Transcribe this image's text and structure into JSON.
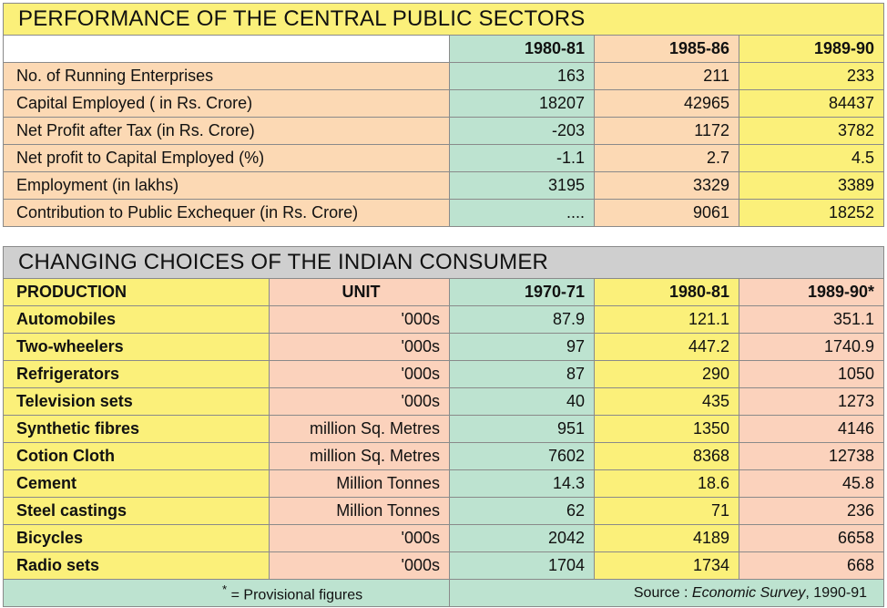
{
  "table1": {
    "title": "PERFORMANCE OF THE CENTRAL PUBLIC SECTORS",
    "columns": [
      "1980-81",
      "1985-86",
      "1989-90"
    ],
    "rows": [
      {
        "label": "No. of Running Enterprises",
        "values": [
          "163",
          "211",
          "233"
        ]
      },
      {
        "label": "Capital Employed ( in Rs. Crore)",
        "values": [
          "18207",
          "42965",
          "84437"
        ]
      },
      {
        "label": "Net Profit after Tax (in Rs. Crore)",
        "values": [
          "-203",
          "1172",
          "3782"
        ]
      },
      {
        "label": "Net profit to Capital Employed (%)",
        "values": [
          "-1.1",
          "2.7",
          "4.5"
        ]
      },
      {
        "label": "Employment (in lakhs)",
        "values": [
          "3195",
          "3329",
          "3389"
        ]
      },
      {
        "label": "Contribution to Public Exchequer (in Rs. Crore)",
        "values": [
          "....",
          "9061",
          "18252"
        ]
      }
    ]
  },
  "table2": {
    "title": "CHANGING CHOICES OF THE INDIAN CONSUMER",
    "headers": [
      "PRODUCTION",
      "UNIT",
      "1970-71",
      "1980-81",
      "1989-90*"
    ],
    "rows": [
      {
        "label": "Automobiles",
        "unit": "'000s",
        "values": [
          "87.9",
          "121.1",
          "351.1"
        ]
      },
      {
        "label": "Two-wheelers",
        "unit": "'000s",
        "values": [
          "97",
          "447.2",
          "1740.9"
        ]
      },
      {
        "label": "Refrigerators",
        "unit": "'000s",
        "values": [
          "87",
          "290",
          "1050"
        ]
      },
      {
        "label": "Television sets",
        "unit": "'000s",
        "values": [
          "40",
          "435",
          "1273"
        ]
      },
      {
        "label": "Synthetic fibres",
        "unit": "million Sq. Metres",
        "values": [
          "951",
          "1350",
          "4146"
        ]
      },
      {
        "label": "Cotion Cloth",
        "unit": "million Sq. Metres",
        "values": [
          "7602",
          "8368",
          "12738"
        ]
      },
      {
        "label": "Cement",
        "unit": "Million Tonnes",
        "values": [
          "14.3",
          "18.6",
          "45.8"
        ]
      },
      {
        "label": "Steel castings",
        "unit": "Million Tonnes",
        "values": [
          "62",
          "71",
          "236"
        ]
      },
      {
        "label": "Bicycles",
        "unit": "'000s",
        "values": [
          "2042",
          "4189",
          "6658"
        ]
      },
      {
        "label": "Radio sets",
        "unit": "'000s",
        "values": [
          "1704",
          "1734",
          "668"
        ]
      }
    ],
    "footnote": {
      "star": "*",
      "note": " = Provisional figures",
      "source_prefix": "Source : ",
      "source_title": "Economic Survey",
      "source_suffix": ", 1990-91"
    }
  }
}
